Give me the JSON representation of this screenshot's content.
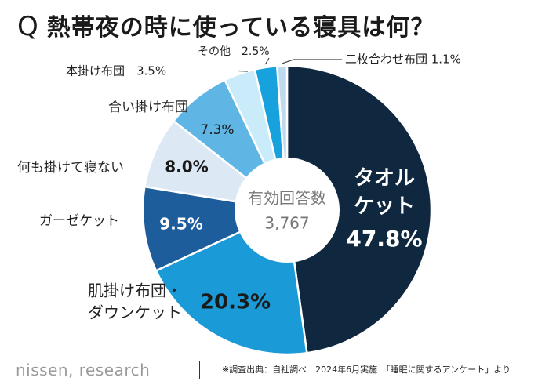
{
  "title": {
    "q": "Q",
    "text": "熱帯夜の時に使っている寝具は何？"
  },
  "chart_data": {
    "type": "pie",
    "title": "熱帯夜の時に使っている寝具は何？",
    "center_label": "有効回答数",
    "center_value": "3,767",
    "unit": "%",
    "slices": [
      {
        "label": "タオルケット",
        "value": 47.8,
        "color": "#10283f"
      },
      {
        "label": "肌掛け布団・ダウンケット",
        "value": 20.3,
        "color": "#1a9ad6"
      },
      {
        "label": "ガーゼケット",
        "value": 9.5,
        "color": "#1e5d9c"
      },
      {
        "label": "何も掛けて寝ない",
        "value": 8.0,
        "color": "#dce8f4"
      },
      {
        "label": "合い掛け布団",
        "value": 7.3,
        "color": "#5fb6e5"
      },
      {
        "label": "本掛け布団",
        "value": 3.5,
        "color": "#c9ebfa"
      },
      {
        "label": "その他",
        "value": 2.5,
        "color": "#17a2dd"
      },
      {
        "label": "二枚合わせ布団",
        "value": 1.1,
        "color": "#bfdaef"
      }
    ]
  },
  "footer": {
    "brand": "nissen, research",
    "source": "※調査出典：自社調べ　2024年6月実施　「睡眠に関するアンケート」より"
  }
}
